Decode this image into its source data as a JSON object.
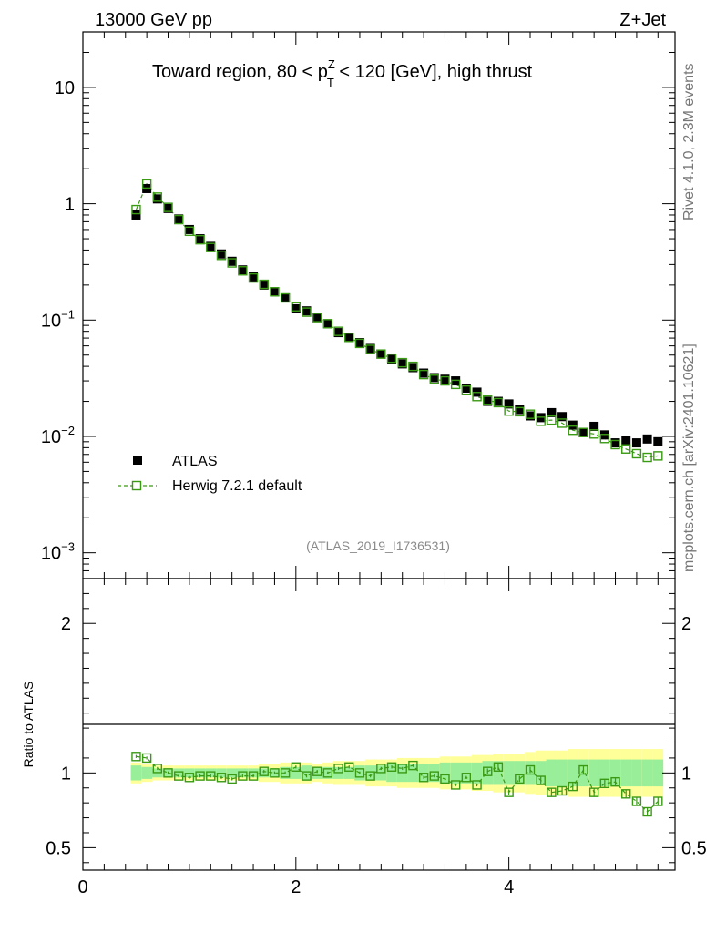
{
  "header": {
    "energy_label": "13000 GeV pp",
    "process_label": "Z+Jet"
  },
  "side_labels": {
    "rivet": "Rivet 4.1.0,  2.3M events",
    "mcplots": "mcplots.cern.ch [arXiv:2401.10621]"
  },
  "colors": {
    "data": "#000000",
    "mc": "#3a9a14",
    "band_inner": "#99ee99",
    "band_outer": "#ffff99"
  },
  "chart_data": [
    {
      "type": "scatter",
      "title_parts": {
        "a": "Toward region, 80 < p",
        "sup": "Z",
        "sub": "T",
        "b": " < 120 [GeV], high thrust"
      },
      "watermark": "(ATLAS_2019_I1736531)",
      "yscale": "log",
      "xlim": [
        0,
        5.56
      ],
      "ylim": [
        0.0006,
        30
      ],
      "ytick_labels": [
        {
          "value": 10,
          "label": "10"
        },
        {
          "value": 1,
          "label": "1"
        },
        {
          "value": 0.1,
          "base": "10",
          "exp": "−1"
        },
        {
          "value": 0.01,
          "base": "10",
          "exp": "−2"
        },
        {
          "value": 0.001,
          "base": "10",
          "exp": "−3"
        }
      ],
      "legend": {
        "position": "lower-left",
        "entries": [
          "ATLAS",
          "Herwig 7.2.1 default"
        ]
      },
      "series": [
        {
          "name": "ATLAS",
          "marker": "filled-square",
          "x": [
            0.5,
            0.6,
            0.7,
            0.8,
            0.9,
            1.0,
            1.1,
            1.2,
            1.3,
            1.4,
            1.5,
            1.6,
            1.7,
            1.8,
            1.9,
            2.0,
            2.1,
            2.2,
            2.3,
            2.4,
            2.5,
            2.6,
            2.7,
            2.8,
            2.9,
            3.0,
            3.1,
            3.2,
            3.3,
            3.4,
            3.5,
            3.6,
            3.7,
            3.8,
            3.9,
            4.0,
            4.1,
            4.2,
            4.3,
            4.4,
            4.5,
            4.6,
            4.7,
            4.8,
            4.9,
            5.0,
            5.1,
            5.2,
            5.3,
            5.4
          ],
          "y": [
            0.8,
            1.35,
            1.1,
            0.91,
            0.74,
            0.6,
            0.5,
            0.43,
            0.37,
            0.32,
            0.27,
            0.235,
            0.2,
            0.175,
            0.155,
            0.125,
            0.12,
            0.105,
            0.093,
            0.078,
            0.071,
            0.064,
            0.057,
            0.051,
            0.046,
            0.042,
            0.039,
            0.035,
            0.032,
            0.031,
            0.03,
            0.026,
            0.024,
            0.02,
            0.02,
            0.019,
            0.017,
            0.015,
            0.0145,
            0.016,
            0.0148,
            0.0125,
            0.0108,
            0.0122,
            0.0103,
            0.0088,
            0.0092,
            0.0088,
            0.0095,
            0.009
          ]
        },
        {
          "name": "Herwig 7.2.1 default",
          "marker": "open-square",
          "line": "dashed",
          "x": [
            0.5,
            0.6,
            0.7,
            0.8,
            0.9,
            1.0,
            1.1,
            1.2,
            1.3,
            1.4,
            1.5,
            1.6,
            1.7,
            1.8,
            1.9,
            2.0,
            2.1,
            2.2,
            2.3,
            2.4,
            2.5,
            2.6,
            2.7,
            2.8,
            2.9,
            3.0,
            3.1,
            3.2,
            3.3,
            3.4,
            3.5,
            3.6,
            3.7,
            3.8,
            3.9,
            4.0,
            4.1,
            4.2,
            4.3,
            4.4,
            4.5,
            4.6,
            4.7,
            4.8,
            4.9,
            5.0,
            5.1,
            5.2,
            5.3,
            5.4
          ],
          "y": [
            0.89,
            1.48,
            1.14,
            0.93,
            0.73,
            0.58,
            0.49,
            0.42,
            0.36,
            0.31,
            0.265,
            0.23,
            0.203,
            0.175,
            0.155,
            0.13,
            0.117,
            0.105,
            0.093,
            0.08,
            0.071,
            0.063,
            0.056,
            0.051,
            0.047,
            0.043,
            0.04,
            0.034,
            0.031,
            0.03,
            0.028,
            0.025,
            0.022,
            0.0205,
            0.0195,
            0.0165,
            0.0163,
            0.0155,
            0.0135,
            0.0138,
            0.013,
            0.0113,
            0.0108,
            0.0105,
            0.0096,
            0.0085,
            0.0078,
            0.0071,
            0.0066,
            0.0068
          ]
        }
      ]
    },
    {
      "type": "scatter",
      "ylabel": "Ratio to ATLAS",
      "xlim": [
        0,
        5.56
      ],
      "ylim": [
        0.35,
        2.3
      ],
      "xtick_labels": [
        {
          "value": 0,
          "label": "0"
        },
        {
          "value": 2,
          "label": "2"
        },
        {
          "value": 4,
          "label": "4"
        }
      ],
      "ytick_labels": [
        {
          "value": 2,
          "label": "2"
        },
        {
          "value": 1,
          "label": "1"
        },
        {
          "value": 0.5,
          "label": "0.5"
        }
      ],
      "reference_line": 1,
      "band_edges": [
        0.45,
        0.55,
        0.65,
        0.75,
        0.85,
        0.95,
        1.05,
        1.15,
        1.25,
        1.35,
        1.45,
        1.55,
        1.65,
        1.75,
        1.85,
        1.95,
        2.05,
        2.15,
        2.25,
        2.35,
        2.45,
        2.55,
        2.65,
        2.75,
        2.85,
        2.95,
        3.05,
        3.15,
        3.25,
        3.35,
        3.45,
        3.55,
        3.65,
        3.75,
        3.85,
        3.95,
        4.05,
        4.15,
        4.25,
        4.35,
        4.45,
        4.55,
        4.65,
        4.75,
        4.85,
        4.95,
        5.05,
        5.15,
        5.25,
        5.35,
        5.45
      ],
      "band_inner": [
        0.05,
        0.04,
        0.03,
        0.03,
        0.03,
        0.03,
        0.03,
        0.03,
        0.03,
        0.03,
        0.03,
        0.03,
        0.03,
        0.03,
        0.04,
        0.04,
        0.05,
        0.04,
        0.04,
        0.04,
        0.04,
        0.05,
        0.05,
        0.05,
        0.06,
        0.06,
        0.06,
        0.06,
        0.06,
        0.07,
        0.07,
        0.07,
        0.07,
        0.08,
        0.08,
        0.08,
        0.08,
        0.08,
        0.08,
        0.09,
        0.09,
        0.09,
        0.09,
        0.09,
        0.09,
        0.09,
        0.09,
        0.09,
        0.09,
        0.09
      ],
      "band_outer": [
        0.07,
        0.06,
        0.05,
        0.05,
        0.05,
        0.05,
        0.05,
        0.05,
        0.05,
        0.05,
        0.05,
        0.05,
        0.06,
        0.06,
        0.07,
        0.07,
        0.07,
        0.06,
        0.07,
        0.08,
        0.08,
        0.08,
        0.09,
        0.09,
        0.09,
        0.1,
        0.1,
        0.1,
        0.1,
        0.11,
        0.11,
        0.11,
        0.12,
        0.12,
        0.13,
        0.13,
        0.13,
        0.14,
        0.15,
        0.15,
        0.15,
        0.16,
        0.16,
        0.16,
        0.16,
        0.16,
        0.16,
        0.16,
        0.16,
        0.16
      ],
      "series": [
        {
          "name": "Herwig 7.2.1 default / ATLAS",
          "marker": "open-square",
          "line": "dashed",
          "x": [
            0.5,
            0.6,
            0.7,
            0.8,
            0.9,
            1.0,
            1.1,
            1.2,
            1.3,
            1.4,
            1.5,
            1.6,
            1.7,
            1.8,
            1.9,
            2.0,
            2.1,
            2.2,
            2.3,
            2.4,
            2.5,
            2.6,
            2.7,
            2.8,
            2.9,
            3.0,
            3.1,
            3.2,
            3.3,
            3.4,
            3.5,
            3.6,
            3.7,
            3.8,
            3.9,
            4.0,
            4.1,
            4.2,
            4.3,
            4.4,
            4.5,
            4.6,
            4.7,
            4.8,
            4.9,
            5.0,
            5.1,
            5.2,
            5.3,
            5.4
          ],
          "y": [
            1.11,
            1.1,
            1.03,
            1.0,
            0.98,
            0.97,
            0.98,
            0.98,
            0.97,
            0.96,
            0.98,
            0.98,
            1.01,
            1.0,
            1.0,
            1.04,
            0.98,
            1.01,
            1.0,
            1.03,
            1.04,
            1.0,
            0.98,
            1.03,
            1.04,
            1.03,
            1.05,
            0.97,
            0.98,
            0.96,
            0.92,
            0.97,
            0.92,
            1.01,
            1.04,
            0.87,
            0.96,
            1.02,
            0.95,
            0.87,
            0.88,
            0.91,
            1.02,
            0.87,
            0.93,
            0.94,
            0.86,
            0.81,
            0.74,
            0.81
          ],
          "errors": [
            0.01,
            0.01,
            0.01,
            0.01,
            0.01,
            0.01,
            0.01,
            0.01,
            0.01,
            0.01,
            0.01,
            0.01,
            0.01,
            0.01,
            0.01,
            0.01,
            0.01,
            0.01,
            0.01,
            0.01,
            0.01,
            0.01,
            0.01,
            0.01,
            0.01,
            0.01,
            0.01,
            0.01,
            0.01,
            0.01,
            0.01,
            0.01,
            0.01,
            0.02,
            0.02,
            0.02,
            0.02,
            0.02,
            0.03,
            0.03,
            0.03,
            0.03,
            0.03,
            0.03,
            0.03,
            0.03,
            0.03,
            0.03,
            0.03,
            0.03
          ]
        }
      ]
    }
  ]
}
